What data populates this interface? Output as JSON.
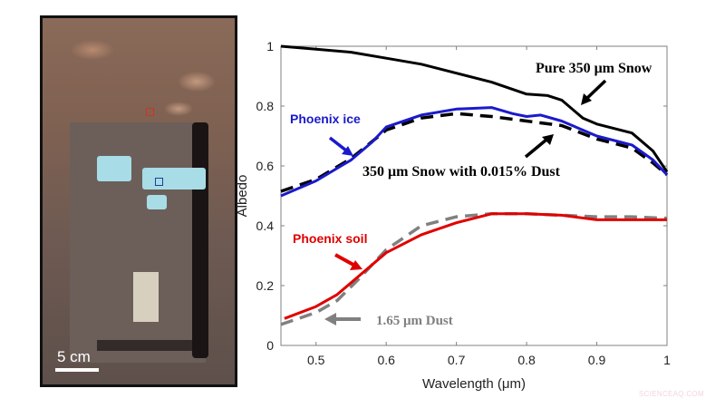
{
  "photo": {
    "scale_label": "5 cm",
    "markers": [
      {
        "name": "soil-sample-marker",
        "color": "#d0312d"
      },
      {
        "name": "ice-sample-marker",
        "color": "#1f3f9a"
      }
    ]
  },
  "watermark": "SCIENCEAQ.COM",
  "chart_data": {
    "type": "line",
    "title": "",
    "xlabel": "Wavelength (μm)",
    "ylabel": "Albedo",
    "xlim": [
      0.45,
      1.0
    ],
    "ylim": [
      0,
      1
    ],
    "xticks": [
      "0.5",
      "0.6",
      "0.7",
      "0.8",
      "0.9",
      "1"
    ],
    "yticks": [
      "0",
      "0.2",
      "0.4",
      "0.6",
      "0.8",
      "1"
    ],
    "grid": false,
    "legend_position": "inline annotations",
    "series": [
      {
        "name": "Pure 350 μm Snow",
        "color": "#000000",
        "style": "solid",
        "x": [
          0.45,
          0.5,
          0.55,
          0.6,
          0.65,
          0.7,
          0.75,
          0.8,
          0.83,
          0.85,
          0.88,
          0.9,
          0.95,
          0.98,
          1.0
        ],
        "values": [
          1.0,
          0.99,
          0.98,
          0.96,
          0.94,
          0.91,
          0.88,
          0.84,
          0.835,
          0.82,
          0.76,
          0.74,
          0.71,
          0.65,
          0.58
        ]
      },
      {
        "name": "Phoenix ice",
        "color": "#1a1acc",
        "style": "solid",
        "x": [
          0.45,
          0.5,
          0.55,
          0.58,
          0.6,
          0.65,
          0.7,
          0.75,
          0.78,
          0.8,
          0.82,
          0.85,
          0.9,
          0.95,
          0.98,
          1.0
        ],
        "values": [
          0.5,
          0.55,
          0.62,
          0.68,
          0.73,
          0.77,
          0.79,
          0.795,
          0.775,
          0.765,
          0.77,
          0.75,
          0.7,
          0.67,
          0.62,
          0.57
        ]
      },
      {
        "name": "350 μm Snow with 0.015% Dust",
        "color": "#000000",
        "style": "dashed",
        "x": [
          0.45,
          0.5,
          0.55,
          0.6,
          0.65,
          0.7,
          0.75,
          0.8,
          0.85,
          0.9,
          0.95,
          0.98,
          1.0
        ],
        "values": [
          0.515,
          0.555,
          0.625,
          0.72,
          0.76,
          0.775,
          0.765,
          0.75,
          0.735,
          0.69,
          0.66,
          0.61,
          0.57
        ]
      },
      {
        "name": "Phoenix soil",
        "color": "#e00000",
        "style": "solid",
        "x": [
          0.455,
          0.5,
          0.53,
          0.56,
          0.6,
          0.65,
          0.7,
          0.75,
          0.8,
          0.85,
          0.9,
          0.95,
          1.0
        ],
        "values": [
          0.09,
          0.13,
          0.17,
          0.23,
          0.31,
          0.37,
          0.41,
          0.44,
          0.44,
          0.435,
          0.42,
          0.42,
          0.42
        ]
      },
      {
        "name": "1.65 μm Dust",
        "color": "#808080",
        "style": "dashed",
        "x": [
          0.45,
          0.5,
          0.53,
          0.56,
          0.6,
          0.65,
          0.7,
          0.75,
          0.8,
          0.85,
          0.9,
          0.95,
          1.0
        ],
        "values": [
          0.07,
          0.11,
          0.15,
          0.22,
          0.32,
          0.4,
          0.43,
          0.44,
          0.44,
          0.435,
          0.43,
          0.43,
          0.425
        ]
      }
    ],
    "annotations": [
      {
        "text": "Pure 350 μm Snow",
        "color": "#000000"
      },
      {
        "text": "Phoenix ice",
        "color": "#1a1acc"
      },
      {
        "text": "350 μm Snow with 0.015% Dust",
        "color": "#000000"
      },
      {
        "text": "Phoenix soil",
        "color": "#e00000"
      },
      {
        "text": "1.65 μm Dust",
        "color": "#808080"
      }
    ]
  }
}
